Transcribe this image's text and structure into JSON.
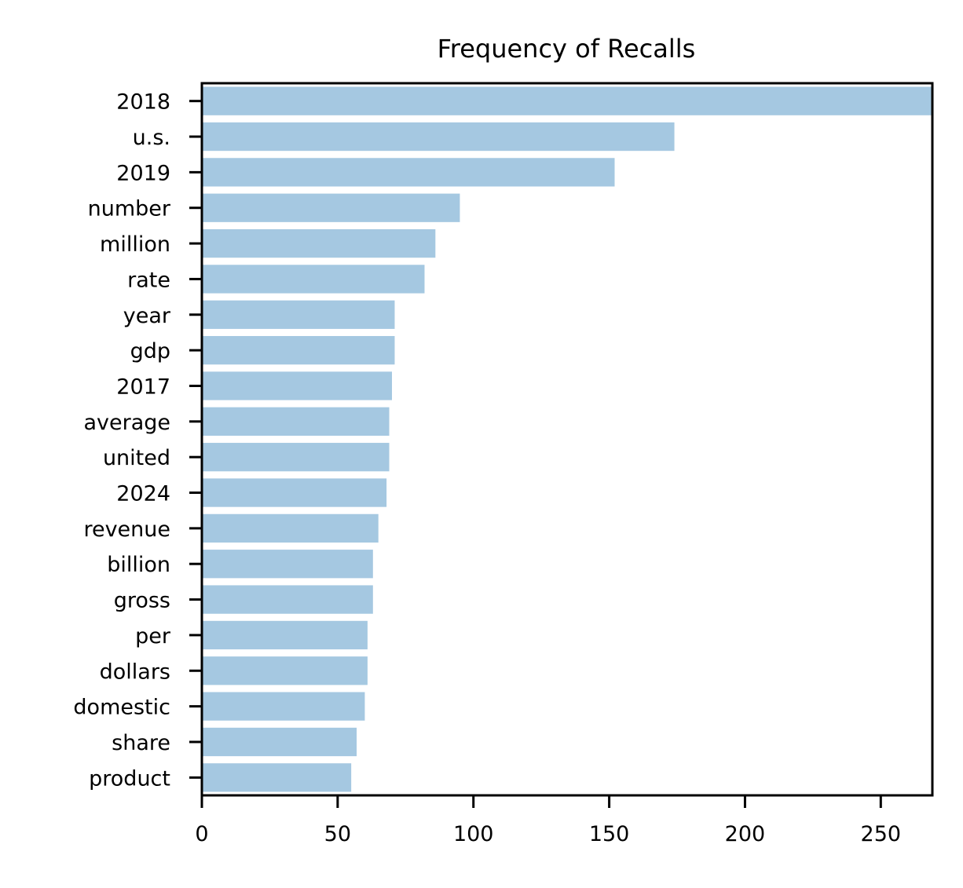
{
  "chart_data": {
    "type": "bar",
    "orientation": "horizontal",
    "title": "Frequency of Recalls",
    "xlabel": "",
    "ylabel": "",
    "categories": [
      "2018",
      "u.s.",
      "2019",
      "number",
      "million",
      "rate",
      "year",
      "gdp",
      "2017",
      "average",
      "united",
      "2024",
      "revenue",
      "billion",
      "gross",
      "per",
      "dollars",
      "domestic",
      "share",
      "product"
    ],
    "values": [
      269,
      174,
      152,
      95,
      86,
      82,
      71,
      71,
      70,
      69,
      69,
      68,
      65,
      63,
      63,
      61,
      61,
      60,
      57,
      55
    ],
    "xlim": [
      0,
      269
    ],
    "xticks": [
      0,
      50,
      100,
      150,
      200,
      250
    ],
    "grid": false,
    "legend": "none",
    "bar_color": "#a5c8e1"
  }
}
